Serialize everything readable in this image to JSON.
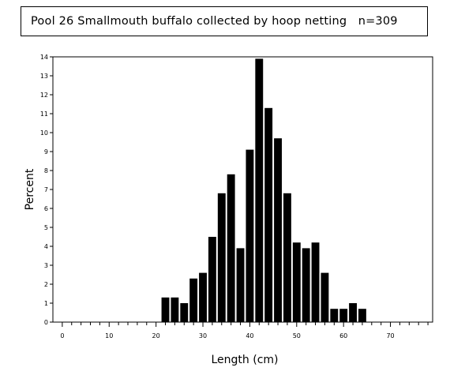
{
  "chart_data": {
    "type": "bar",
    "title": "Pool 26 Smallmouth buffalo collected by hoop netting   n=309",
    "xlabel": "Length (cm)",
    "ylabel": "Percent",
    "xlim": [
      -2,
      79
    ],
    "ylim": [
      0,
      14
    ],
    "x_ticks": [
      0,
      10,
      20,
      30,
      40,
      50,
      60,
      70
    ],
    "y_ticks": [
      0,
      1,
      2,
      3,
      4,
      5,
      6,
      7,
      8,
      9,
      10,
      11,
      12,
      13,
      14
    ],
    "bin_width": 2,
    "x": [
      22,
      24,
      26,
      28,
      30,
      32,
      34,
      36,
      38,
      40,
      42,
      44,
      46,
      48,
      50,
      52,
      54,
      56,
      58,
      60,
      62,
      64
    ],
    "values": [
      1.3,
      1.3,
      1.0,
      2.3,
      2.6,
      4.5,
      6.8,
      7.8,
      3.9,
      9.1,
      13.9,
      11.3,
      9.7,
      6.8,
      4.2,
      3.9,
      4.2,
      2.6,
      0.7,
      0.7,
      1.0,
      0.7
    ],
    "bar_color": "#000000",
    "grid": false
  }
}
